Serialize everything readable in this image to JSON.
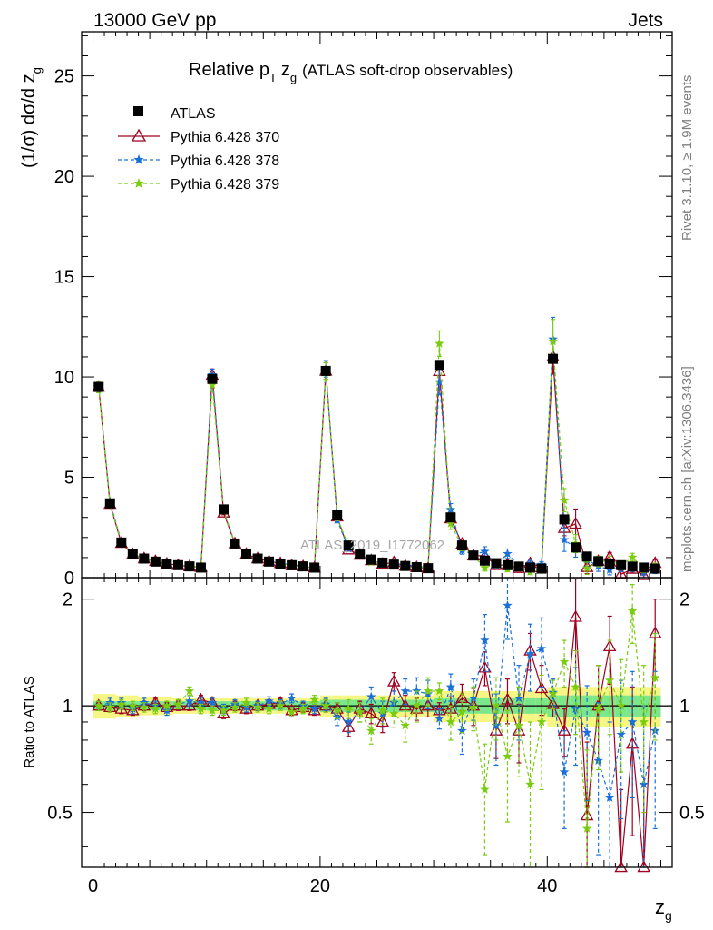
{
  "header": {
    "left": "13000 GeV pp",
    "right": "Jets"
  },
  "side": {
    "rivet": "Rivet 3.1.10, ≥ 1.9M events",
    "mcplots": "mcplots.cern.ch [arXiv:1306.3436]"
  },
  "chart_data": {
    "type": "line",
    "title_main": "Relative p",
    "title_sub_T": "T",
    "title_z": "z",
    "title_sub_g": "g",
    "title_rest": "(ATLAS soft-drop observables)",
    "analysis_label": "ATLAS_2019_I1772062",
    "xlabel": "z",
    "xlabel_sub": "g",
    "ylabel": "(1/σ) dσ/d z",
    "ylabel_sub": "g",
    "ratio_ylabel": "Ratio to ATLAS",
    "xlim": [
      -1,
      51
    ],
    "ylim": [
      0,
      27.2
    ],
    "ratio_ylim": [
      0.35,
      2.3
    ],
    "xticks": [
      0,
      20,
      40
    ],
    "xtick_labels": [
      "0",
      "20",
      "40"
    ],
    "yticks": [
      0,
      5,
      10,
      15,
      20,
      25
    ],
    "ytick_labels": [
      "0",
      "5",
      "10",
      "15",
      "20",
      "25"
    ],
    "ratio_yticks": [
      0.5,
      1,
      2
    ],
    "ratio_ytick_labels": [
      "0.5",
      "1",
      "2"
    ],
    "x": [
      0.5,
      1.5,
      2.5,
      3.5,
      4.5,
      5.5,
      6.5,
      7.5,
      8.5,
      9.5,
      10.5,
      11.5,
      12.5,
      13.5,
      14.5,
      15.5,
      16.5,
      17.5,
      18.5,
      19.5,
      20.5,
      21.5,
      22.5,
      23.5,
      24.5,
      25.5,
      26.5,
      27.5,
      28.5,
      29.5,
      30.5,
      31.5,
      32.5,
      33.5,
      34.5,
      35.5,
      36.5,
      37.5,
      38.5,
      39.5,
      40.5,
      41.5,
      42.5,
      43.5,
      44.5,
      45.5,
      46.5,
      47.5,
      48.5,
      49.5
    ],
    "reference": {
      "name": "ATLAS",
      "color": "#000000",
      "values": [
        9.5,
        3.7,
        1.75,
        1.2,
        0.95,
        0.8,
        0.7,
        0.62,
        0.56,
        0.5,
        9.9,
        3.4,
        1.7,
        1.2,
        0.95,
        0.8,
        0.7,
        0.62,
        0.56,
        0.5,
        10.3,
        3.1,
        1.6,
        1.15,
        0.9,
        0.75,
        0.65,
        0.58,
        0.52,
        0.47,
        10.6,
        3.0,
        1.6,
        1.1,
        0.85,
        0.72,
        0.62,
        0.55,
        0.5,
        0.45,
        10.9,
        2.9,
        1.5,
        1.05,
        0.82,
        0.7,
        0.62,
        0.55,
        0.5,
        0.45
      ],
      "band_inner": [
        0.03,
        0.03,
        0.03,
        0.03,
        0.03,
        0.03,
        0.03,
        0.03,
        0.03,
        0.03,
        0.03,
        0.03,
        0.03,
        0.03,
        0.03,
        0.03,
        0.03,
        0.03,
        0.03,
        0.03,
        0.04,
        0.04,
        0.04,
        0.04,
        0.04,
        0.04,
        0.04,
        0.04,
        0.04,
        0.04,
        0.05,
        0.05,
        0.05,
        0.05,
        0.05,
        0.05,
        0.05,
        0.05,
        0.05,
        0.05,
        0.07,
        0.07,
        0.07,
        0.07,
        0.07,
        0.07,
        0.07,
        0.07,
        0.07,
        0.07
      ],
      "band_outer": [
        0.08,
        0.08,
        0.07,
        0.07,
        0.06,
        0.06,
        0.06,
        0.05,
        0.05,
        0.05,
        0.05,
        0.05,
        0.05,
        0.05,
        0.05,
        0.05,
        0.05,
        0.05,
        0.05,
        0.05,
        0.07,
        0.07,
        0.07,
        0.07,
        0.07,
        0.07,
        0.07,
        0.07,
        0.07,
        0.07,
        0.1,
        0.1,
        0.1,
        0.1,
        0.1,
        0.1,
        0.1,
        0.1,
        0.1,
        0.1,
        0.13,
        0.13,
        0.13,
        0.13,
        0.13,
        0.13,
        0.13,
        0.13,
        0.13,
        0.13
      ]
    },
    "series": [
      {
        "name": "Pythia 6.428 370",
        "color": "#a00020",
        "style": "solid",
        "marker": "open-triangle",
        "ratio": [
          1.0,
          0.99,
          0.98,
          0.97,
          1.0,
          1.02,
          0.99,
          1.0,
          1.0,
          1.04,
          1.02,
          0.95,
          1.0,
          0.98,
          1.0,
          1.01,
          1.02,
          0.97,
          0.99,
          0.97,
          1.0,
          0.98,
          0.87,
          0.98,
          0.95,
          0.9,
          1.17,
          1.0,
          0.98,
          1.0,
          0.97,
          0.98,
          1.05,
          1.0,
          1.28,
          0.85,
          1.04,
          0.85,
          1.43,
          1.12,
          1.01,
          0.85,
          1.78,
          0.49,
          1.0,
          1.47,
          0.28,
          0.78,
          0.23,
          1.6
        ],
        "ratio_err": [
          0.03,
          0.03,
          0.03,
          0.03,
          0.03,
          0.03,
          0.03,
          0.03,
          0.03,
          0.03,
          0.03,
          0.03,
          0.03,
          0.03,
          0.03,
          0.03,
          0.03,
          0.03,
          0.03,
          0.03,
          0.04,
          0.04,
          0.05,
          0.05,
          0.06,
          0.06,
          0.07,
          0.07,
          0.07,
          0.07,
          0.05,
          0.08,
          0.1,
          0.12,
          0.14,
          0.14,
          0.15,
          0.16,
          0.17,
          0.18,
          0.08,
          0.13,
          0.5,
          0.3,
          0.3,
          0.32,
          0.3,
          0.35,
          0.4,
          0.4
        ]
      },
      {
        "name": "Pythia 6.428 378",
        "color": "#1a6fd8",
        "style": "dashed",
        "marker": "star",
        "ratio": [
          1.0,
          1.02,
          1.02,
          0.98,
          1.02,
          1.0,
          0.97,
          1.01,
          1.03,
          1.02,
          1.02,
          0.98,
          1.01,
          0.99,
          1.0,
          1.03,
          1.01,
          1.05,
          1.0,
          0.98,
          1.01,
          0.93,
          0.9,
          0.96,
          1.06,
          0.95,
          1.02,
          1.1,
          1.1,
          1.08,
          0.92,
          1.13,
          0.85,
          1.05,
          1.53,
          0.88,
          1.92,
          1.05,
          1.4,
          1.45,
          1.09,
          0.65,
          0.98,
          0.84,
          0.7,
          0.55,
          0.83,
          0.9,
          0.6,
          0.85
        ],
        "ratio_err": [
          0.03,
          0.03,
          0.03,
          0.03,
          0.03,
          0.03,
          0.03,
          0.03,
          0.03,
          0.03,
          0.03,
          0.03,
          0.03,
          0.03,
          0.03,
          0.03,
          0.03,
          0.03,
          0.03,
          0.03,
          0.04,
          0.05,
          0.06,
          0.06,
          0.07,
          0.08,
          0.08,
          0.09,
          0.1,
          0.1,
          0.06,
          0.1,
          0.12,
          0.14,
          0.28,
          0.2,
          0.38,
          0.25,
          0.3,
          0.32,
          0.1,
          0.2,
          0.3,
          0.3,
          0.32,
          0.35,
          0.35,
          0.35,
          0.4,
          0.4
        ]
      },
      {
        "name": "Pythia 6.428 379",
        "color": "#7acc10",
        "style": "dashed",
        "marker": "star",
        "ratio": [
          1.0,
          0.99,
          1.01,
          1.0,
          0.99,
          0.98,
          1.0,
          1.01,
          1.1,
          0.98,
          0.97,
          0.97,
          0.99,
          1.02,
          0.99,
          0.98,
          1.0,
          0.96,
          0.98,
          1.04,
          1.0,
          0.97,
          0.98,
          0.96,
          0.85,
          0.97,
          0.95,
          0.88,
          1.0,
          1.1,
          1.1,
          0.9,
          0.96,
          0.99,
          0.58,
          1.0,
          0.72,
          0.88,
          0.6,
          0.9,
          1.08,
          1.33,
          1.13,
          0.45,
          0.98,
          1.18,
          1.0,
          1.85,
          0.9,
          1.2
        ],
        "ratio_err": [
          0.03,
          0.03,
          0.03,
          0.03,
          0.03,
          0.03,
          0.03,
          0.03,
          0.03,
          0.03,
          0.03,
          0.03,
          0.03,
          0.03,
          0.03,
          0.03,
          0.03,
          0.03,
          0.03,
          0.03,
          0.04,
          0.05,
          0.06,
          0.06,
          0.07,
          0.08,
          0.08,
          0.09,
          0.1,
          0.1,
          0.06,
          0.1,
          0.12,
          0.14,
          0.2,
          0.2,
          0.25,
          0.25,
          0.3,
          0.32,
          0.1,
          0.2,
          0.3,
          0.3,
          0.32,
          0.35,
          0.35,
          0.35,
          0.4,
          0.4
        ]
      }
    ],
    "legend_position": "top-left"
  }
}
